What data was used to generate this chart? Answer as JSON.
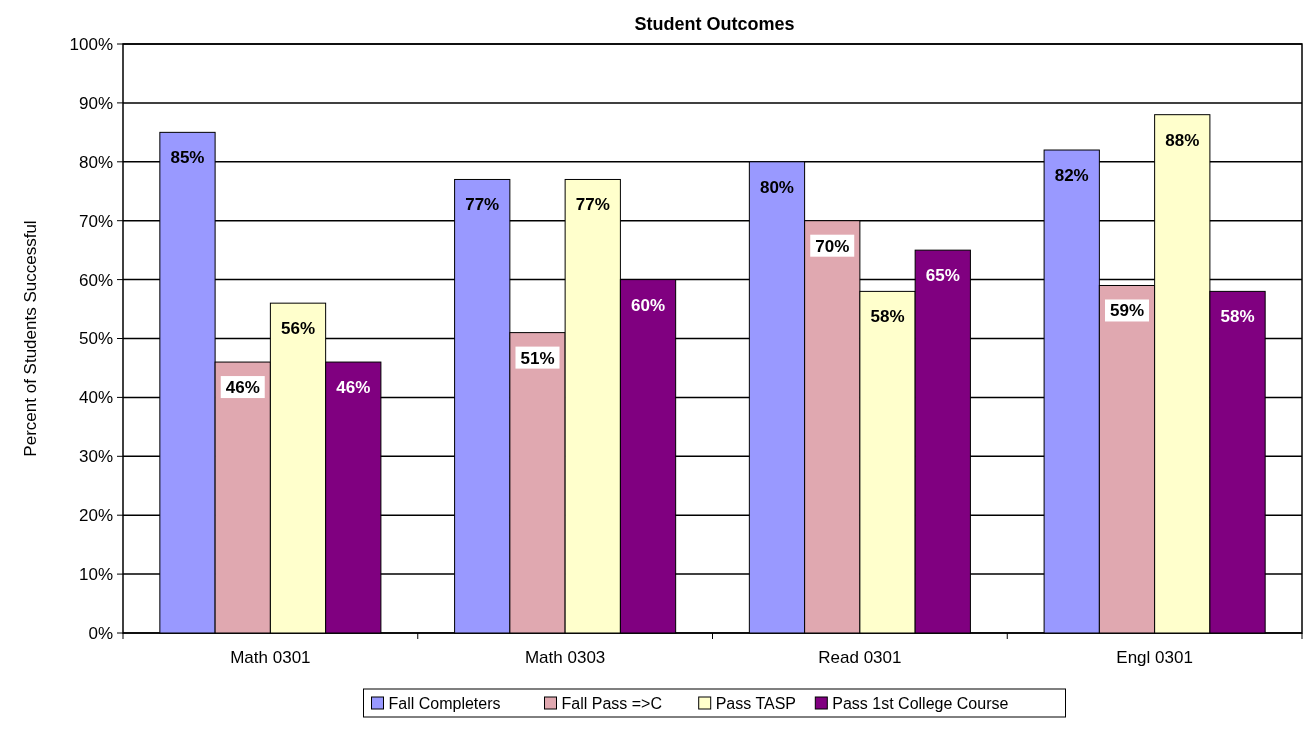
{
  "chart_data": {
    "type": "bar",
    "title": "Student Outcomes",
    "ylabel": "Percent of Students Successful",
    "categories": [
      "Math 0301",
      "Math 0303",
      "Read 0301",
      "Engl 0301"
    ],
    "series": [
      {
        "name": "Fall Completers",
        "color": "#9999ff",
        "values": [
          85,
          77,
          80,
          82
        ],
        "value_labels": [
          "85%",
          "77%",
          "80%",
          "82%"
        ]
      },
      {
        "name": "Fall Pass =>C",
        "color": "#e0a8b0",
        "values": [
          46,
          51,
          70,
          59
        ],
        "value_labels": [
          "46%",
          "51%",
          "70%",
          "59%"
        ]
      },
      {
        "name": "Pass TASP",
        "color": "#ffffcc",
        "values": [
          56,
          77,
          58,
          88
        ],
        "value_labels": [
          "56%",
          "77%",
          "58%",
          "88%"
        ]
      },
      {
        "name": "Pass 1st College Course",
        "color": "#800080",
        "values": [
          46,
          60,
          65,
          58
        ],
        "value_labels": [
          "46%",
          "60%",
          "65%",
          "58%"
        ]
      }
    ],
    "ylim": [
      0,
      100
    ],
    "yticks": [
      {
        "value": 0,
        "label": "0%"
      },
      {
        "value": 10,
        "label": "10%"
      },
      {
        "value": 20,
        "label": "20%"
      },
      {
        "value": 30,
        "label": "30%"
      },
      {
        "value": 40,
        "label": "40%"
      },
      {
        "value": 50,
        "label": "50%"
      },
      {
        "value": 60,
        "label": "60%"
      },
      {
        "value": 70,
        "label": "70%"
      },
      {
        "value": 80,
        "label": "80%"
      },
      {
        "value": 90,
        "label": "90%"
      },
      {
        "value": 100,
        "label": "100%"
      }
    ],
    "grid": "y",
    "legend": "bottom"
  }
}
